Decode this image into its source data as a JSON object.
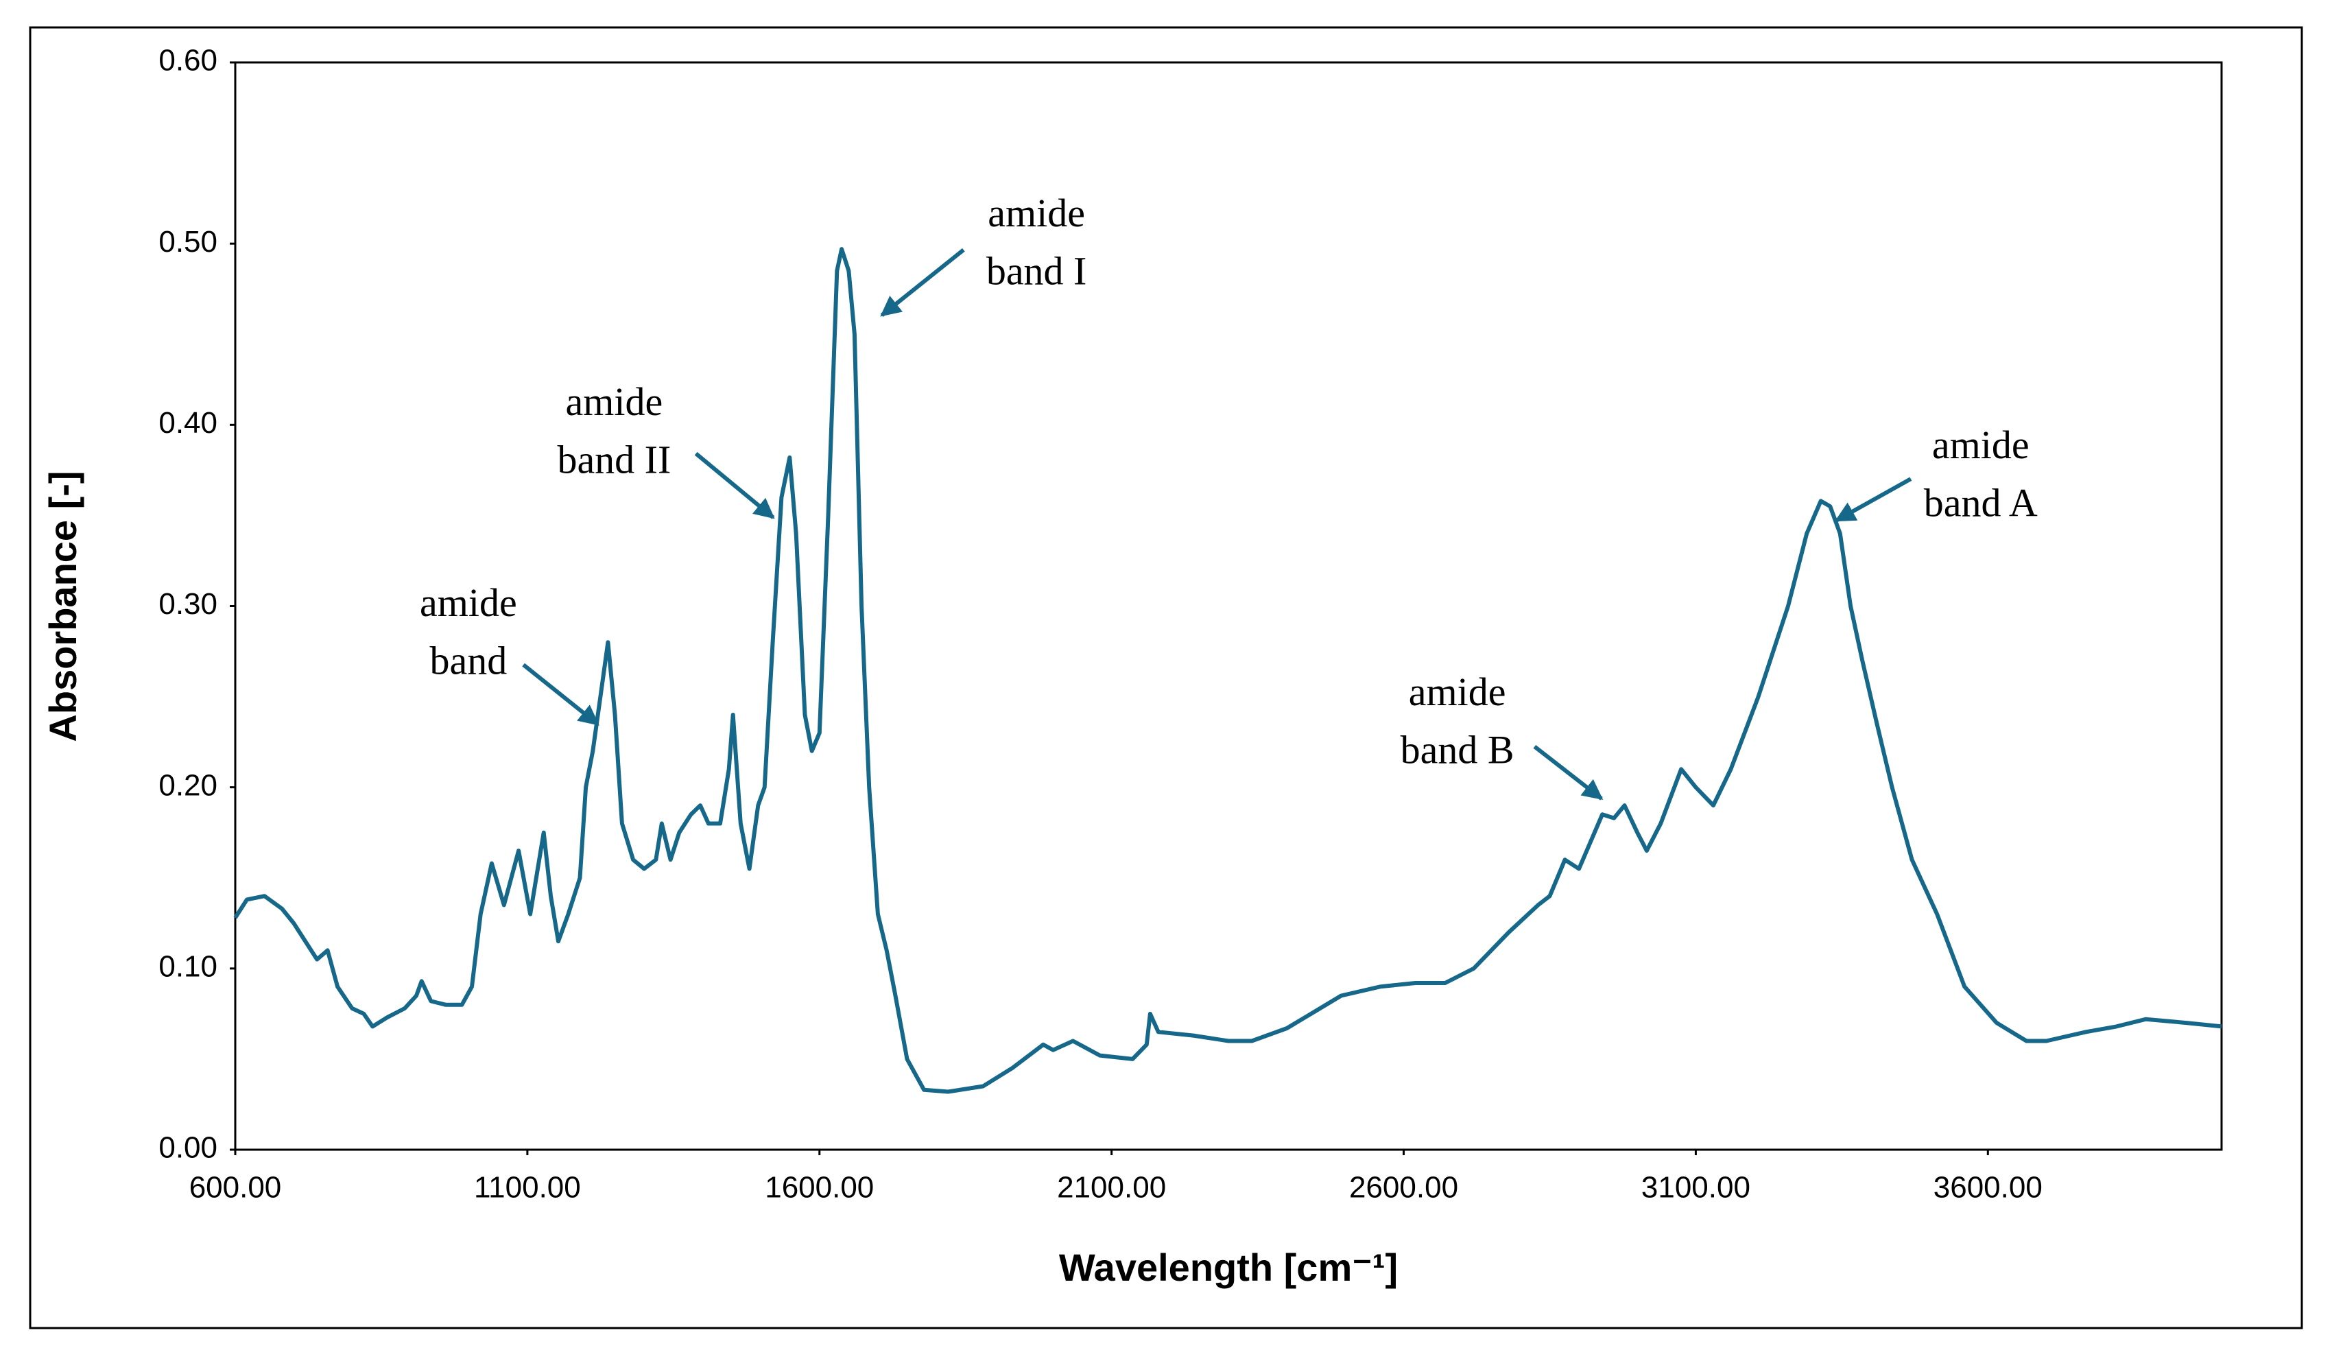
{
  "chart_data": {
    "type": "line",
    "xlabel": "Wavelength [cm⁻¹]",
    "ylabel": "Absorbance [-]",
    "color": "#16688a",
    "xlim": [
      600,
      4000
    ],
    "ylim": [
      0,
      0.6
    ],
    "xticks": [
      {
        "value": 600,
        "label": "600.00"
      },
      {
        "value": 1100,
        "label": "1100.00"
      },
      {
        "value": 1600,
        "label": "1600.00"
      },
      {
        "value": 2100,
        "label": "2100.00"
      },
      {
        "value": 2600,
        "label": "2600.00"
      },
      {
        "value": 3100,
        "label": "3100.00"
      },
      {
        "value": 3600,
        "label": "3600.00"
      }
    ],
    "yticks": [
      {
        "value": 0,
        "label": "0.00"
      },
      {
        "value": 0.1,
        "label": "0.10"
      },
      {
        "value": 0.2,
        "label": "0.20"
      },
      {
        "value": 0.3,
        "label": "0.30"
      },
      {
        "value": 0.4,
        "label": "0.40"
      },
      {
        "value": 0.5,
        "label": "0.50"
      },
      {
        "value": 0.6,
        "label": "0.60"
      }
    ],
    "x": [
      600,
      620,
      650,
      680,
      700,
      720,
      740,
      758,
      775,
      800,
      820,
      835,
      860,
      890,
      910,
      919,
      935,
      960,
      988,
      1005,
      1020,
      1039,
      1060,
      1085,
      1105,
      1128,
      1140,
      1153,
      1170,
      1190,
      1200,
      1212,
      1225,
      1238,
      1250,
      1262,
      1281,
      1300,
      1320,
      1330,
      1345,
      1360,
      1380,
      1396,
      1410,
      1430,
      1445,
      1452,
      1465,
      1480,
      1495,
      1506,
      1520,
      1535,
      1549,
      1560,
      1575,
      1587,
      1600,
      1615,
      1630,
      1638,
      1650,
      1660,
      1672,
      1685,
      1700,
      1715,
      1730,
      1750,
      1779,
      1820,
      1880,
      1930,
      1983,
      2000,
      2034,
      2080,
      2136,
      2160,
      2166,
      2180,
      2240,
      2300,
      2340,
      2400,
      2493,
      2560,
      2620,
      2671,
      2720,
      2780,
      2830,
      2850,
      2876,
      2900,
      2940,
      2960,
      2978,
      3000,
      3016,
      3040,
      3075,
      3100,
      3130,
      3160,
      3207,
      3258,
      3290,
      3314,
      3330,
      3347,
      3365,
      3385,
      3410,
      3436,
      3470,
      3513,
      3560,
      3615,
      3666,
      3700,
      3768,
      3820,
      3870,
      3940,
      4000
    ],
    "values": [
      0.128,
      0.138,
      0.14,
      0.133,
      0.125,
      0.115,
      0.105,
      0.11,
      0.09,
      0.078,
      0.075,
      0.068,
      0.073,
      0.078,
      0.085,
      0.093,
      0.082,
      0.08,
      0.08,
      0.09,
      0.13,
      0.158,
      0.135,
      0.165,
      0.13,
      0.175,
      0.14,
      0.115,
      0.13,
      0.15,
      0.2,
      0.22,
      0.25,
      0.28,
      0.24,
      0.18,
      0.16,
      0.155,
      0.16,
      0.18,
      0.16,
      0.175,
      0.185,
      0.19,
      0.18,
      0.18,
      0.21,
      0.24,
      0.18,
      0.155,
      0.19,
      0.2,
      0.28,
      0.36,
      0.382,
      0.34,
      0.24,
      0.22,
      0.23,
      0.35,
      0.485,
      0.497,
      0.485,
      0.45,
      0.3,
      0.2,
      0.13,
      0.11,
      0.085,
      0.05,
      0.033,
      0.032,
      0.035,
      0.045,
      0.058,
      0.055,
      0.06,
      0.052,
      0.05,
      0.058,
      0.075,
      0.065,
      0.063,
      0.06,
      0.06,
      0.067,
      0.085,
      0.09,
      0.092,
      0.092,
      0.1,
      0.12,
      0.135,
      0.14,
      0.16,
      0.155,
      0.185,
      0.183,
      0.19,
      0.175,
      0.165,
      0.18,
      0.21,
      0.2,
      0.19,
      0.21,
      0.25,
      0.3,
      0.34,
      0.358,
      0.355,
      0.34,
      0.3,
      0.27,
      0.235,
      0.2,
      0.16,
      0.13,
      0.09,
      0.07,
      0.06,
      0.06,
      0.065,
      0.068,
      0.072,
      0.07,
      0.068
    ],
    "annotations": [
      {
        "lines": [
          "amide",
          "band"
        ]
      },
      {
        "lines": [
          "amide",
          "band II"
        ]
      },
      {
        "lines": [
          "amide",
          "band I"
        ]
      },
      {
        "lines": [
          "amide",
          "band B"
        ]
      },
      {
        "lines": [
          "amide",
          "band A"
        ]
      }
    ]
  }
}
